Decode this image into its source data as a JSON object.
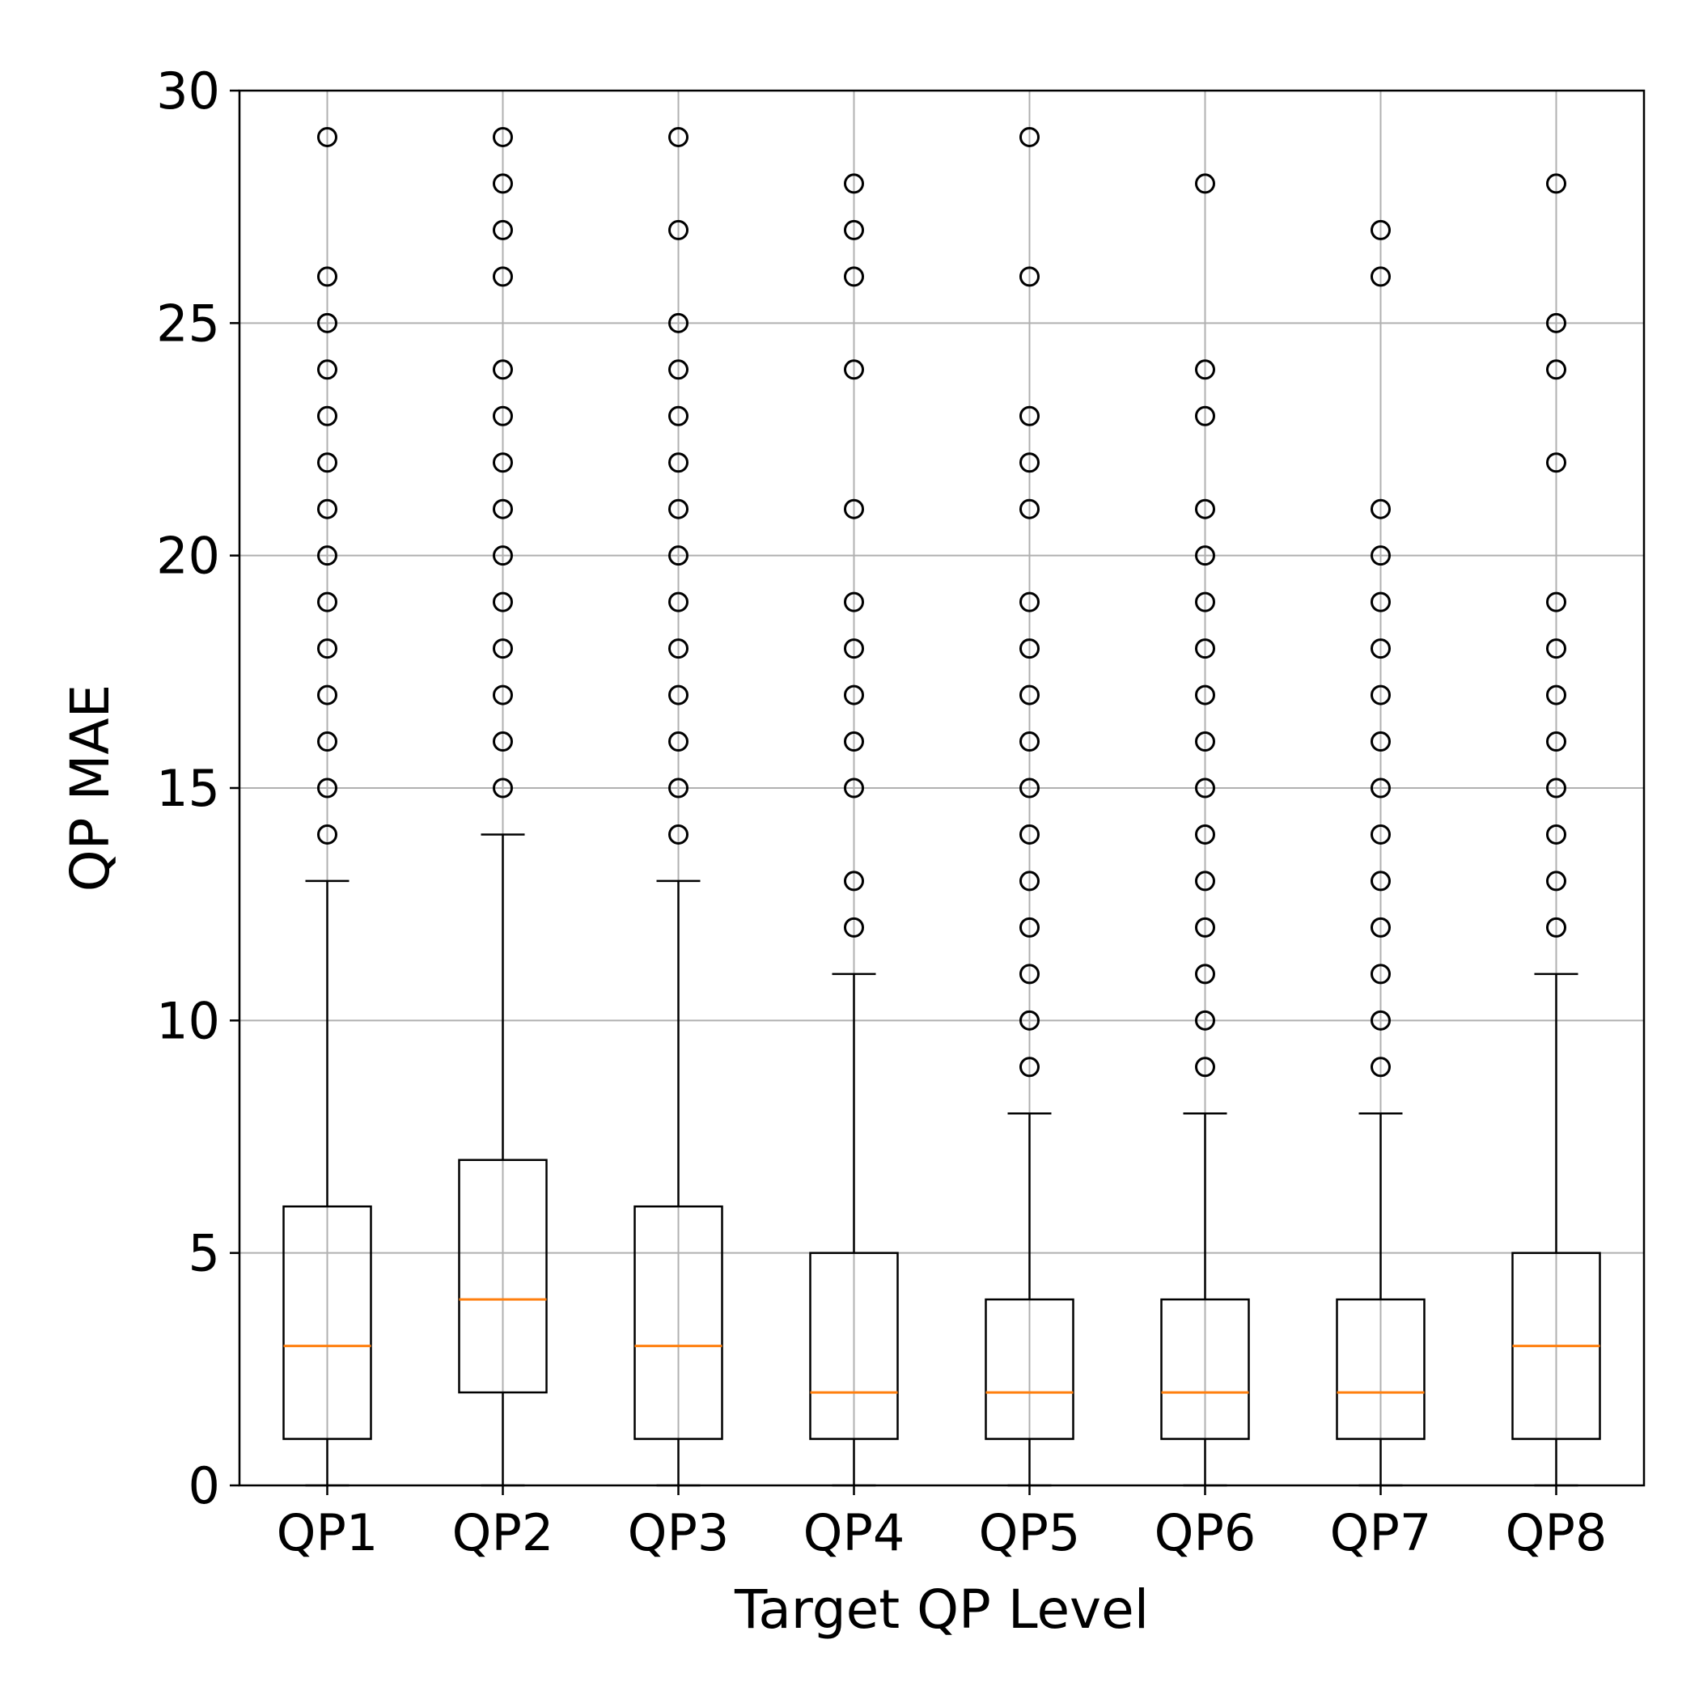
{
  "chart_data": {
    "type": "boxplot",
    "title": "",
    "xlabel": "Target QP Level",
    "ylabel": "QP MAE",
    "ylim": [
      0,
      30
    ],
    "yticks": [
      0,
      5,
      10,
      15,
      20,
      25,
      30
    ],
    "grid": true,
    "categories": [
      "QP1",
      "QP2",
      "QP3",
      "QP4",
      "QP5",
      "QP6",
      "QP7",
      "QP8"
    ],
    "boxes": [
      {
        "label": "QP1",
        "whisker_low": 0,
        "q1": 1,
        "median": 3,
        "q3": 6,
        "whisker_high": 13,
        "outliers": [
          14,
          15,
          16,
          17,
          18,
          19,
          20,
          21,
          22,
          23,
          24,
          25,
          26,
          29
        ]
      },
      {
        "label": "QP2",
        "whisker_low": 0,
        "q1": 2,
        "median": 4,
        "q3": 7,
        "whisker_high": 14,
        "outliers": [
          15,
          16,
          17,
          18,
          19,
          20,
          21,
          22,
          23,
          24,
          26,
          27,
          28,
          29
        ]
      },
      {
        "label": "QP3",
        "whisker_low": 0,
        "q1": 1,
        "median": 3,
        "q3": 6,
        "whisker_high": 13,
        "outliers": [
          14,
          15,
          16,
          17,
          18,
          19,
          20,
          21,
          22,
          23,
          24,
          25,
          27,
          29
        ]
      },
      {
        "label": "QP4",
        "whisker_low": 0,
        "q1": 1,
        "median": 2,
        "q3": 5,
        "whisker_high": 11,
        "outliers": [
          12,
          13,
          15,
          16,
          17,
          18,
          19,
          21,
          24,
          26,
          27,
          28
        ]
      },
      {
        "label": "QP5",
        "whisker_low": 0,
        "q1": 1,
        "median": 2,
        "q3": 4,
        "whisker_high": 8,
        "outliers": [
          9,
          10,
          11,
          12,
          13,
          14,
          15,
          16,
          17,
          18,
          19,
          21,
          22,
          23,
          26,
          29
        ]
      },
      {
        "label": "QP6",
        "whisker_low": 0,
        "q1": 1,
        "median": 2,
        "q3": 4,
        "whisker_high": 8,
        "outliers": [
          9,
          10,
          11,
          12,
          13,
          14,
          15,
          16,
          17,
          18,
          19,
          20,
          21,
          23,
          24,
          28
        ]
      },
      {
        "label": "QP7",
        "whisker_low": 0,
        "q1": 1,
        "median": 2,
        "q3": 4,
        "whisker_high": 8,
        "outliers": [
          9,
          10,
          11,
          12,
          13,
          14,
          15,
          16,
          17,
          18,
          19,
          20,
          21,
          26,
          27
        ]
      },
      {
        "label": "QP8",
        "whisker_low": 0,
        "q1": 1,
        "median": 3,
        "q3": 5,
        "whisker_high": 11,
        "outliers": [
          12,
          13,
          14,
          15,
          16,
          17,
          18,
          19,
          22,
          24,
          25,
          28
        ]
      }
    ],
    "colors": {
      "box": "#000000",
      "median": "#ff7f0e",
      "grid": "#b0b0b0"
    }
  }
}
